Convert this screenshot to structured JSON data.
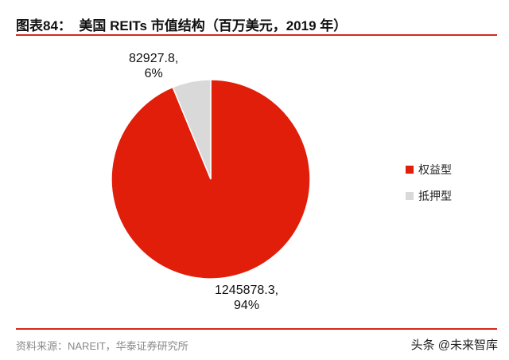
{
  "header": {
    "title": "图表84：  美国 REITs 市值结构（百万美元，2019 年）"
  },
  "footer": {
    "source": "资料来源：NAREIT，华泰证券研究所",
    "watermark": "头条 @未来智库"
  },
  "chart_data": {
    "type": "pie",
    "title": "美国 REITs 市值结构（百万美元，2019 年）",
    "slices": [
      {
        "name": "权益型",
        "value": 1245878.3,
        "value_label": "1245878.3,",
        "pct_label": "94%",
        "color": "#e01e0a"
      },
      {
        "name": "抵押型",
        "value": 82927.8,
        "value_label": "82927.8,",
        "pct_label": "6%",
        "color": "#d9d9d9"
      }
    ],
    "legend_position": "right"
  }
}
